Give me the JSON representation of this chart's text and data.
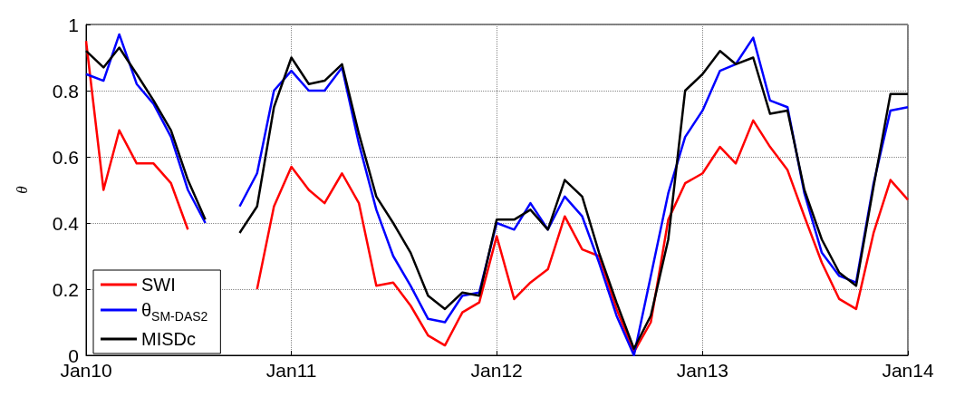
{
  "chart_data": {
    "type": "line",
    "ylabel": "θ",
    "x": [
      "2010-01",
      "2010-02",
      "2010-03",
      "2010-04",
      "2010-05",
      "2010-06",
      "2010-07",
      "2010-08",
      "2010-09",
      "2010-10",
      "2010-11",
      "2010-12",
      "2011-01",
      "2011-02",
      "2011-03",
      "2011-04",
      "2011-05",
      "2011-06",
      "2011-07",
      "2011-08",
      "2011-09",
      "2011-10",
      "2011-11",
      "2011-12",
      "2012-01",
      "2012-02",
      "2012-03",
      "2012-04",
      "2012-05",
      "2012-06",
      "2012-07",
      "2012-08",
      "2012-09",
      "2012-10",
      "2012-11",
      "2012-12",
      "2013-01",
      "2013-02",
      "2013-03",
      "2013-04",
      "2013-05",
      "2013-06",
      "2013-07",
      "2013-08",
      "2013-09",
      "2013-10",
      "2013-11",
      "2013-12",
      "2014-01"
    ],
    "series": [
      {
        "name": "SWI",
        "color": "#ff0000",
        "values": [
          0.95,
          0.5,
          0.68,
          0.58,
          0.58,
          0.52,
          0.38,
          null,
          null,
          null,
          0.2,
          0.45,
          0.57,
          0.5,
          0.46,
          0.55,
          0.46,
          0.21,
          0.22,
          0.15,
          0.06,
          0.03,
          0.13,
          0.16,
          0.36,
          0.17,
          0.22,
          0.26,
          0.42,
          0.32,
          0.3,
          0.14,
          0.01,
          0.1,
          0.41,
          0.52,
          0.55,
          0.63,
          0.58,
          0.71,
          0.63,
          0.56,
          0.42,
          0.28,
          0.17,
          0.14,
          0.37,
          0.53,
          0.47
        ]
      },
      {
        "name": "θ$_{SM-DAS2}$",
        "color": "#0000ff",
        "values": [
          0.85,
          0.83,
          0.97,
          0.82,
          0.76,
          0.66,
          0.5,
          0.4,
          null,
          0.45,
          0.55,
          0.8,
          0.86,
          0.8,
          0.8,
          0.87,
          0.64,
          0.44,
          0.3,
          0.21,
          0.11,
          0.1,
          0.18,
          0.19,
          0.4,
          0.38,
          0.46,
          0.38,
          0.48,
          0.42,
          0.28,
          0.12,
          0.0,
          0.24,
          0.49,
          0.66,
          0.74,
          0.86,
          0.88,
          0.96,
          0.77,
          0.75,
          0.49,
          0.31,
          0.24,
          0.22,
          0.52,
          0.74,
          0.75
        ]
      },
      {
        "name": "MISDc",
        "color": "#000000",
        "values": [
          0.92,
          0.87,
          0.93,
          0.85,
          0.77,
          0.68,
          0.53,
          0.41,
          null,
          0.37,
          0.45,
          0.75,
          0.9,
          0.82,
          0.83,
          0.88,
          0.67,
          0.48,
          0.4,
          0.31,
          0.18,
          0.14,
          0.19,
          0.18,
          0.41,
          0.41,
          0.44,
          0.38,
          0.53,
          0.48,
          0.31,
          0.16,
          0.02,
          0.12,
          0.35,
          0.8,
          0.85,
          0.92,
          0.88,
          0.9,
          0.73,
          0.74,
          0.5,
          0.35,
          0.25,
          0.21,
          0.51,
          0.79,
          0.79
        ]
      }
    ],
    "xlim": [
      "2010-01",
      "2014-01"
    ],
    "xticks": [
      {
        "value": "2010-01",
        "label": "Jan10"
      },
      {
        "value": "2011-01",
        "label": "Jan11"
      },
      {
        "value": "2012-01",
        "label": "Jan12"
      },
      {
        "value": "2013-01",
        "label": "Jan13"
      },
      {
        "value": "2014-01",
        "label": "Jan14"
      }
    ],
    "ylim": [
      0,
      1
    ],
    "yticks": [
      0,
      0.2,
      0.4,
      0.6,
      0.8,
      1
    ],
    "grid": true,
    "legend": "bottom left",
    "line_style": "solid",
    "marker": "none"
  }
}
